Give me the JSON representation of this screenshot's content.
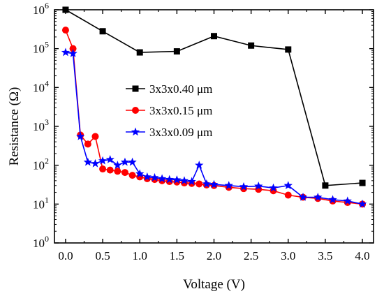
{
  "chart_data": {
    "type": "line",
    "title": "",
    "xlabel": "Voltage (V)",
    "ylabel": "Resistance (Ω)",
    "xscale": "linear",
    "yscale": "log",
    "xlim": [
      -0.15,
      4.15
    ],
    "ylim": [
      1,
      1000000
    ],
    "grid": false,
    "legend_position": "center",
    "x_ticks": [
      {
        "value": 0.0,
        "label": "0.0"
      },
      {
        "value": 0.5,
        "label": "0.5"
      },
      {
        "value": 1.0,
        "label": "1.0"
      },
      {
        "value": 1.5,
        "label": "1.5"
      },
      {
        "value": 2.0,
        "label": "2.0"
      },
      {
        "value": 2.5,
        "label": "2.5"
      },
      {
        "value": 3.0,
        "label": "3.0"
      },
      {
        "value": 3.5,
        "label": "3.5"
      },
      {
        "value": 4.0,
        "label": "4.0"
      }
    ],
    "y_ticks": [
      {
        "value": 1,
        "base": "10",
        "exp": "0"
      },
      {
        "value": 10,
        "base": "10",
        "exp": "1"
      },
      {
        "value": 100,
        "base": "10",
        "exp": "2"
      },
      {
        "value": 1000,
        "base": "10",
        "exp": "3"
      },
      {
        "value": 10000,
        "base": "10",
        "exp": "4"
      },
      {
        "value": 100000,
        "base": "10",
        "exp": "5"
      },
      {
        "value": 1000000,
        "base": "10",
        "exp": "6"
      }
    ],
    "series": [
      {
        "name": "3x3x0.40 μm",
        "color": "#000000",
        "marker": "square",
        "x": [
          0.0,
          0.5,
          1.0,
          1.5,
          2.0,
          2.5,
          3.0,
          3.5,
          4.0
        ],
        "y": [
          1000000,
          280000,
          80000,
          85000,
          210000,
          120000,
          95000,
          30,
          35
        ]
      },
      {
        "name": "3x3x0.15 μm",
        "color": "#ff0000",
        "marker": "circle",
        "x": [
          0.0,
          0.1,
          0.2,
          0.3,
          0.4,
          0.5,
          0.6,
          0.7,
          0.8,
          0.9,
          1.0,
          1.1,
          1.2,
          1.3,
          1.4,
          1.5,
          1.6,
          1.7,
          1.8,
          1.9,
          2.0,
          2.2,
          2.4,
          2.6,
          2.8,
          3.0,
          3.2,
          3.4,
          3.6,
          3.8,
          4.0
        ],
        "y": [
          300000,
          100000,
          600,
          350,
          550,
          80,
          75,
          70,
          65,
          55,
          50,
          45,
          43,
          40,
          38,
          37,
          35,
          34,
          33,
          31,
          30,
          27,
          25,
          24,
          22,
          17,
          15,
          14,
          12,
          11,
          10
        ]
      },
      {
        "name": "3x3x0.09 μm",
        "color": "#0000ff",
        "marker": "star",
        "x": [
          0.0,
          0.1,
          0.2,
          0.3,
          0.4,
          0.5,
          0.6,
          0.7,
          0.8,
          0.9,
          1.0,
          1.1,
          1.2,
          1.3,
          1.4,
          1.5,
          1.6,
          1.7,
          1.8,
          1.9,
          2.0,
          2.2,
          2.4,
          2.6,
          2.8,
          3.0,
          3.2,
          3.4,
          3.6,
          3.8,
          4.0
        ],
        "y": [
          80000,
          75000,
          550,
          120,
          110,
          130,
          140,
          100,
          120,
          120,
          60,
          50,
          48,
          45,
          43,
          42,
          40,
          38,
          100,
          33,
          32,
          30,
          28,
          29,
          26,
          30,
          15,
          15,
          13,
          12,
          10
        ]
      }
    ]
  }
}
